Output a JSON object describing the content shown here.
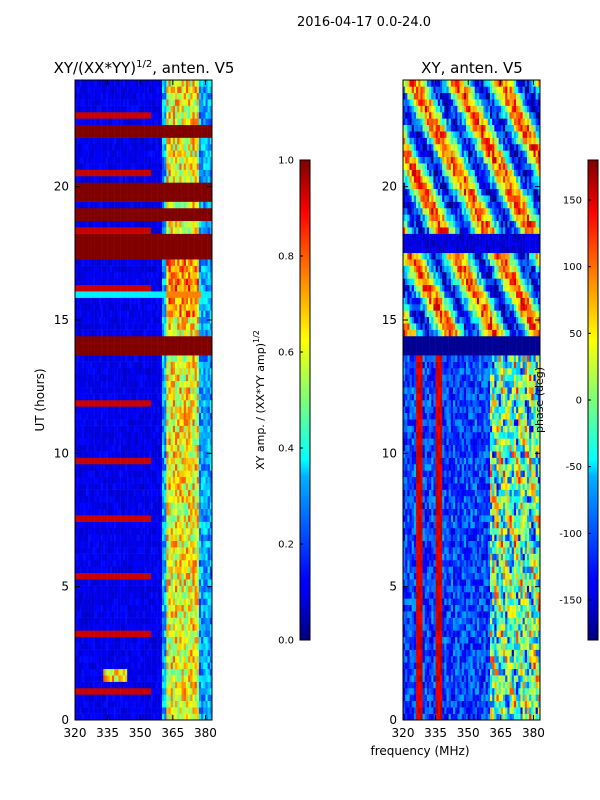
{
  "suptitle": "2016-04-17 0.0-24.0",
  "chart_data": [
    {
      "type": "heatmap",
      "title_main": "XY/(XX*YY)",
      "title_exp": "1/2",
      "title_suffix": ", anten. V5",
      "xlabel": "",
      "ylabel": "UT (hours)",
      "xlim": [
        320,
        383
      ],
      "ylim": [
        0,
        24
      ],
      "xticks": [
        320,
        335,
        350,
        365,
        380
      ],
      "yticks": [
        0,
        5,
        10,
        15,
        20
      ],
      "bright_channels_mhz": [
        363,
        364,
        366,
        367,
        369,
        371,
        373,
        374,
        376
      ],
      "saturated_bands_ut": [
        [
          13.6,
          14.3
        ],
        [
          17.2,
          18.3
        ],
        [
          18.8,
          19.1
        ],
        [
          19.5,
          20.1
        ],
        [
          21.9,
          22.4
        ]
      ],
      "cyan_band_ut": [
        15.75,
        16.05
      ],
      "colorbar": {
        "label_main": "XY amp. / (XX*YY amp)",
        "label_exp": "1/2",
        "range": [
          0.0,
          1.0
        ],
        "ticks": [
          "0.0",
          "0.2",
          "0.4",
          "0.6",
          "0.8",
          "1.0"
        ],
        "colormap": "jet"
      }
    },
    {
      "type": "heatmap",
      "title_main": "XY",
      "title_exp": "",
      "title_suffix": ", anten. V5",
      "xlabel": "frequency (MHz)",
      "ylabel": "",
      "xlim": [
        320,
        383
      ],
      "ylim": [
        0,
        24
      ],
      "xticks": [
        320,
        335,
        350,
        365,
        380
      ],
      "yticks": [
        0,
        5,
        10,
        15,
        20
      ],
      "lowband_red_channels_mhz": [
        327,
        328,
        336,
        337
      ],
      "masked_band_ut": [
        13.6,
        14.3
      ],
      "dark_band_ut": [
        17.5,
        18.3
      ],
      "colorbar": {
        "label_main": "phase (deg)",
        "label_exp": "",
        "range": [
          -180,
          180
        ],
        "ticks": [
          "-150",
          "-100",
          "-50",
          "0",
          "50",
          "100",
          "150"
        ],
        "colormap": "jet"
      }
    }
  ]
}
